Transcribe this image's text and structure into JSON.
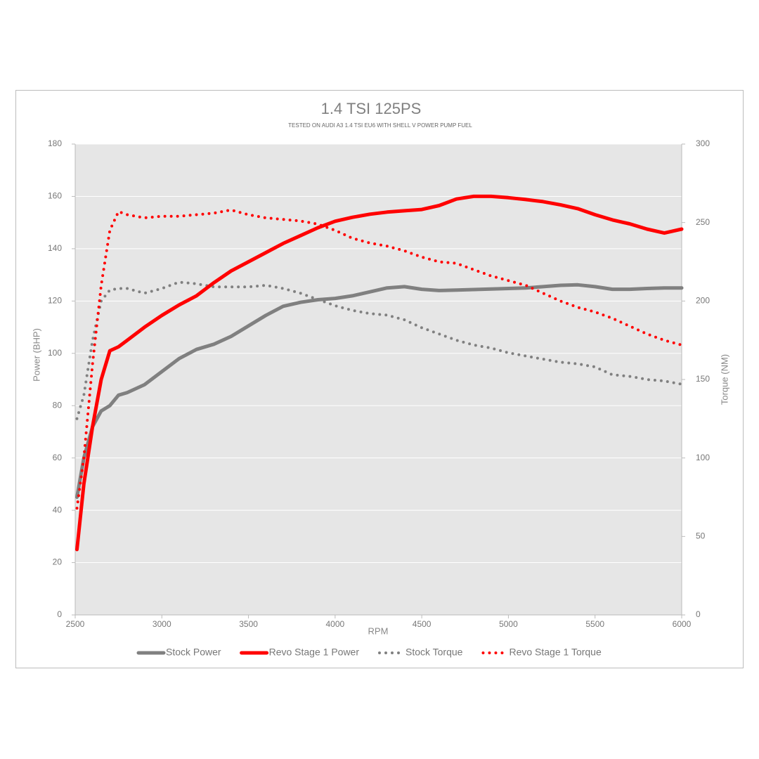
{
  "chart_data": {
    "type": "line",
    "title": "1.4 TSI 125PS",
    "subtitle": "TESTED ON AUDI A3 1.4 TSI EU6 WITH SHELL V POWER PUMP FUEL",
    "x_label": "RPM",
    "y_label": "Power (BHP)",
    "y2_label": "Torque (NM)",
    "x": [
      2510,
      2550,
      2600,
      2650,
      2700,
      2750,
      2800,
      2900,
      3000,
      3100,
      3200,
      3300,
      3400,
      3500,
      3600,
      3700,
      3800,
      3900,
      4000,
      4100,
      4200,
      4300,
      4400,
      4500,
      4600,
      4700,
      4800,
      4900,
      5000,
      5100,
      5200,
      5300,
      5400,
      5500,
      5600,
      5700,
      5800,
      5900,
      6000
    ],
    "series": [
      {
        "name": "Stock Power",
        "color": "#808080",
        "style": "solid",
        "values": [
          45,
          60,
          72,
          78,
          80,
          84,
          85,
          88,
          93,
          98,
          101.5,
          103.5,
          106.5,
          110.5,
          114.5,
          118,
          119.5,
          120.5,
          121,
          122,
          123.5,
          125,
          125.5,
          124.5,
          124,
          124.2,
          124.4,
          124.6,
          124.8,
          125,
          125.5,
          126,
          126.2,
          125.5,
          124.5,
          124.5,
          124.8,
          125,
          125
        ]
      },
      {
        "name": "Revo Stage 1 Power",
        "color": "#ff0000",
        "style": "solid",
        "values": [
          25,
          50,
          72,
          90,
          101,
          102.5,
          105,
          110,
          114.5,
          118.5,
          122,
          127,
          131.5,
          135,
          138.5,
          142,
          145,
          148,
          150.5,
          152,
          153.2,
          154,
          154.5,
          155,
          156.5,
          159,
          160,
          160,
          159.5,
          158.8,
          158,
          156.8,
          155.3,
          153,
          151,
          149.5,
          147.5,
          146,
          147.5
        ]
      },
      {
        "name": "Stock Torque",
        "color": "#808080",
        "style": "dotted",
        "axis": "y2",
        "values": [
          125,
          140,
          175,
          200,
          207,
          208,
          208,
          205,
          208,
          212,
          211,
          209,
          209,
          209,
          210,
          208,
          205,
          201,
          197,
          194,
          192,
          191,
          188,
          183,
          179,
          175,
          172,
          170,
          167,
          165,
          163,
          161,
          160,
          158,
          153,
          152,
          150,
          149,
          147
        ]
      },
      {
        "name": "Revo Stage 1 Torque",
        "color": "#ff0000",
        "style": "dotted",
        "axis": "y2",
        "values": [
          68,
          100,
          160,
          210,
          245,
          257,
          255,
          253,
          254,
          254,
          255,
          256,
          258,
          255,
          253,
          252,
          251,
          249,
          245,
          240,
          237,
          235,
          232,
          228,
          225,
          224,
          220,
          216,
          213,
          210,
          205,
          200,
          196,
          193,
          189,
          184,
          179,
          175,
          172
        ]
      }
    ],
    "xlim": [
      2500,
      6000
    ],
    "xticks": [
      2500,
      3000,
      3500,
      4000,
      4500,
      5000,
      5500,
      6000
    ],
    "ylim": [
      0,
      180
    ],
    "yticks": [
      0,
      20,
      40,
      60,
      80,
      100,
      120,
      140,
      160,
      180
    ],
    "y2lim": [
      0,
      300
    ],
    "y2ticks": [
      0,
      50,
      100,
      150,
      200,
      250,
      300
    ],
    "grid": true,
    "legend": "bottom"
  }
}
